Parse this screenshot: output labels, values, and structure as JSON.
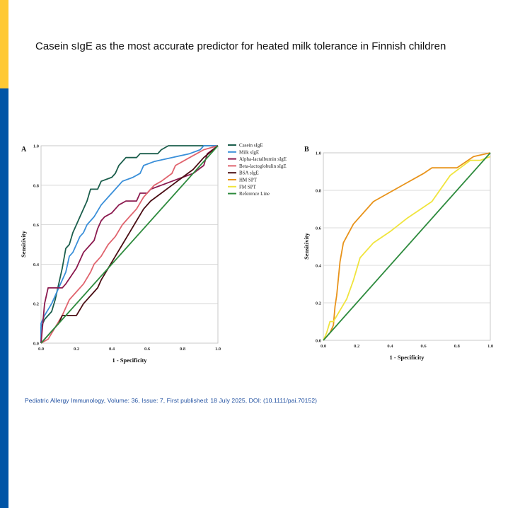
{
  "slide": {
    "title": "Casein sIgE as the most accurate predictor for heated milk tolerance in Finnish children",
    "citation": "Pediatric Allergy Immunology, Volume: 36, Issue: 7, First published: 18 July 2025, DOI: (10.1111/pai.70152)",
    "accent_colors": {
      "top_bar": "#FFC933",
      "side_bar": "#0054A6"
    }
  },
  "chart_data": [
    {
      "type": "line",
      "panel_label": "A",
      "xlabel": "1 - Specificity",
      "ylabel": "Sensitivity",
      "xlim": [
        0,
        1
      ],
      "ylim": [
        0,
        1
      ],
      "xticks": [
        "0.0",
        "0.2",
        "0.4",
        "0.6",
        "0.8",
        "1.0"
      ],
      "yticks": [
        "0.0",
        "0.2",
        "0.4",
        "0.6",
        "0.8",
        "1.0"
      ],
      "grid": "horizontal",
      "legend_position": "right",
      "series": [
        {
          "name": "Casein sIgE",
          "color": "#1B5E4C",
          "points": [
            [
              0,
              0
            ],
            [
              0,
              0.08
            ],
            [
              0.02,
              0.12
            ],
            [
              0.04,
              0.14
            ],
            [
              0.06,
              0.16
            ],
            [
              0.08,
              0.22
            ],
            [
              0.1,
              0.3
            ],
            [
              0.12,
              0.38
            ],
            [
              0.14,
              0.48
            ],
            [
              0.16,
              0.5
            ],
            [
              0.18,
              0.56
            ],
            [
              0.2,
              0.6
            ],
            [
              0.22,
              0.64
            ],
            [
              0.26,
              0.72
            ],
            [
              0.28,
              0.78
            ],
            [
              0.32,
              0.78
            ],
            [
              0.34,
              0.82
            ],
            [
              0.4,
              0.84
            ],
            [
              0.42,
              0.86
            ],
            [
              0.44,
              0.9
            ],
            [
              0.48,
              0.94
            ],
            [
              0.54,
              0.94
            ],
            [
              0.56,
              0.96
            ],
            [
              0.66,
              0.96
            ],
            [
              0.68,
              0.98
            ],
            [
              0.72,
              1.0
            ],
            [
              1,
              1
            ]
          ]
        },
        {
          "name": "Milk sIgE",
          "color": "#3A8FD9",
          "points": [
            [
              0,
              0
            ],
            [
              0,
              0.1
            ],
            [
              0.02,
              0.14
            ],
            [
              0.06,
              0.2
            ],
            [
              0.1,
              0.28
            ],
            [
              0.12,
              0.32
            ],
            [
              0.14,
              0.36
            ],
            [
              0.16,
              0.44
            ],
            [
              0.18,
              0.46
            ],
            [
              0.2,
              0.5
            ],
            [
              0.22,
              0.54
            ],
            [
              0.24,
              0.56
            ],
            [
              0.26,
              0.6
            ],
            [
              0.3,
              0.64
            ],
            [
              0.34,
              0.7
            ],
            [
              0.38,
              0.74
            ],
            [
              0.42,
              0.78
            ],
            [
              0.46,
              0.82
            ],
            [
              0.52,
              0.84
            ],
            [
              0.56,
              0.86
            ],
            [
              0.58,
              0.9
            ],
            [
              0.64,
              0.92
            ],
            [
              0.74,
              0.94
            ],
            [
              0.84,
              0.96
            ],
            [
              0.9,
              0.98
            ],
            [
              0.92,
              1.0
            ],
            [
              1,
              1
            ]
          ]
        },
        {
          "name": "Alpha-lactalbumin sIgE",
          "color": "#8B1A4F",
          "points": [
            [
              0,
              0
            ],
            [
              0.02,
              0.2
            ],
            [
              0.04,
              0.28
            ],
            [
              0.12,
              0.28
            ],
            [
              0.14,
              0.3
            ],
            [
              0.2,
              0.38
            ],
            [
              0.24,
              0.46
            ],
            [
              0.28,
              0.5
            ],
            [
              0.3,
              0.52
            ],
            [
              0.32,
              0.58
            ],
            [
              0.34,
              0.62
            ],
            [
              0.36,
              0.64
            ],
            [
              0.4,
              0.66
            ],
            [
              0.44,
              0.7
            ],
            [
              0.48,
              0.72
            ],
            [
              0.54,
              0.72
            ],
            [
              0.56,
              0.76
            ],
            [
              0.6,
              0.76
            ],
            [
              0.62,
              0.78
            ],
            [
              0.68,
              0.8
            ],
            [
              0.74,
              0.82
            ],
            [
              0.8,
              0.84
            ],
            [
              0.86,
              0.86
            ],
            [
              0.92,
              0.9
            ],
            [
              0.94,
              0.96
            ],
            [
              1,
              1
            ]
          ]
        },
        {
          "name": "Beta-lactoglobulin sIgE",
          "color": "#E0646E",
          "points": [
            [
              0,
              0
            ],
            [
              0.04,
              0.02
            ],
            [
              0.08,
              0.08
            ],
            [
              0.12,
              0.14
            ],
            [
              0.14,
              0.18
            ],
            [
              0.16,
              0.22
            ],
            [
              0.2,
              0.26
            ],
            [
              0.24,
              0.3
            ],
            [
              0.28,
              0.36
            ],
            [
              0.3,
              0.4
            ],
            [
              0.34,
              0.44
            ],
            [
              0.38,
              0.5
            ],
            [
              0.42,
              0.54
            ],
            [
              0.46,
              0.6
            ],
            [
              0.5,
              0.64
            ],
            [
              0.54,
              0.68
            ],
            [
              0.58,
              0.74
            ],
            [
              0.64,
              0.8
            ],
            [
              0.68,
              0.82
            ],
            [
              0.74,
              0.86
            ],
            [
              0.76,
              0.9
            ],
            [
              0.8,
              0.92
            ],
            [
              0.84,
              0.94
            ],
            [
              0.88,
              0.96
            ],
            [
              0.92,
              0.98
            ],
            [
              1,
              1
            ]
          ]
        },
        {
          "name": "BSA sIgE",
          "color": "#4A0E14",
          "points": [
            [
              0,
              0
            ],
            [
              0.04,
              0.04
            ],
            [
              0.08,
              0.08
            ],
            [
              0.1,
              0.1
            ],
            [
              0.12,
              0.14
            ],
            [
              0.2,
              0.14
            ],
            [
              0.24,
              0.2
            ],
            [
              0.28,
              0.24
            ],
            [
              0.32,
              0.28
            ],
            [
              0.34,
              0.32
            ],
            [
              0.38,
              0.38
            ],
            [
              0.42,
              0.44
            ],
            [
              0.46,
              0.5
            ],
            [
              0.5,
              0.56
            ],
            [
              0.54,
              0.62
            ],
            [
              0.58,
              0.68
            ],
            [
              0.62,
              0.72
            ],
            [
              0.68,
              0.76
            ],
            [
              0.74,
              0.8
            ],
            [
              0.8,
              0.84
            ],
            [
              0.86,
              0.88
            ],
            [
              0.92,
              0.94
            ],
            [
              1,
              1
            ]
          ]
        },
        {
          "name": "HM SPT",
          "color": "#E8931A",
          "legend_only": true,
          "points": []
        },
        {
          "name": "FM SPT",
          "color": "#F0E43C",
          "legend_only": true,
          "points": []
        },
        {
          "name": "Reference Line",
          "color": "#2E8B3E",
          "points": [
            [
              0,
              0
            ],
            [
              1,
              1
            ]
          ]
        }
      ]
    },
    {
      "type": "line",
      "panel_label": "B",
      "xlabel": "1 - Specificity",
      "ylabel": "Sensitivity",
      "xlim": [
        0,
        1
      ],
      "ylim": [
        0,
        1
      ],
      "xticks": [
        "0.0",
        "0.2",
        "0.4",
        "0.6",
        "0.8",
        "1.0"
      ],
      "yticks": [
        "0.0",
        "0.2",
        "0.4",
        "0.6",
        "0.8",
        "1.0"
      ],
      "grid": "horizontal",
      "legend_position": "none",
      "series": [
        {
          "color": "#E8931A",
          "points": [
            [
              0,
              0
            ],
            [
              0.04,
              0.04
            ],
            [
              0.06,
              0.08
            ],
            [
              0.07,
              0.18
            ],
            [
              0.08,
              0.24
            ],
            [
              0.1,
              0.42
            ],
            [
              0.12,
              0.52
            ],
            [
              0.18,
              0.62
            ],
            [
              0.3,
              0.74
            ],
            [
              0.4,
              0.79
            ],
            [
              0.5,
              0.84
            ],
            [
              0.6,
              0.89
            ],
            [
              0.65,
              0.92
            ],
            [
              0.8,
              0.92
            ],
            [
              0.9,
              0.98
            ],
            [
              1,
              1
            ]
          ]
        },
        {
          "color": "#F0E43C",
          "points": [
            [
              0,
              0
            ],
            [
              0.02,
              0.04
            ],
            [
              0.04,
              0.1
            ],
            [
              0.06,
              0.1
            ],
            [
              0.1,
              0.16
            ],
            [
              0.14,
              0.22
            ],
            [
              0.18,
              0.32
            ],
            [
              0.22,
              0.44
            ],
            [
              0.3,
              0.52
            ],
            [
              0.4,
              0.58
            ],
            [
              0.5,
              0.65
            ],
            [
              0.65,
              0.74
            ],
            [
              0.76,
              0.88
            ],
            [
              0.88,
              0.96
            ],
            [
              0.94,
              0.96
            ],
            [
              1,
              0.98
            ]
          ]
        },
        {
          "color": "#2E8B3E",
          "points": [
            [
              0,
              0
            ],
            [
              1,
              1
            ]
          ]
        }
      ]
    }
  ]
}
